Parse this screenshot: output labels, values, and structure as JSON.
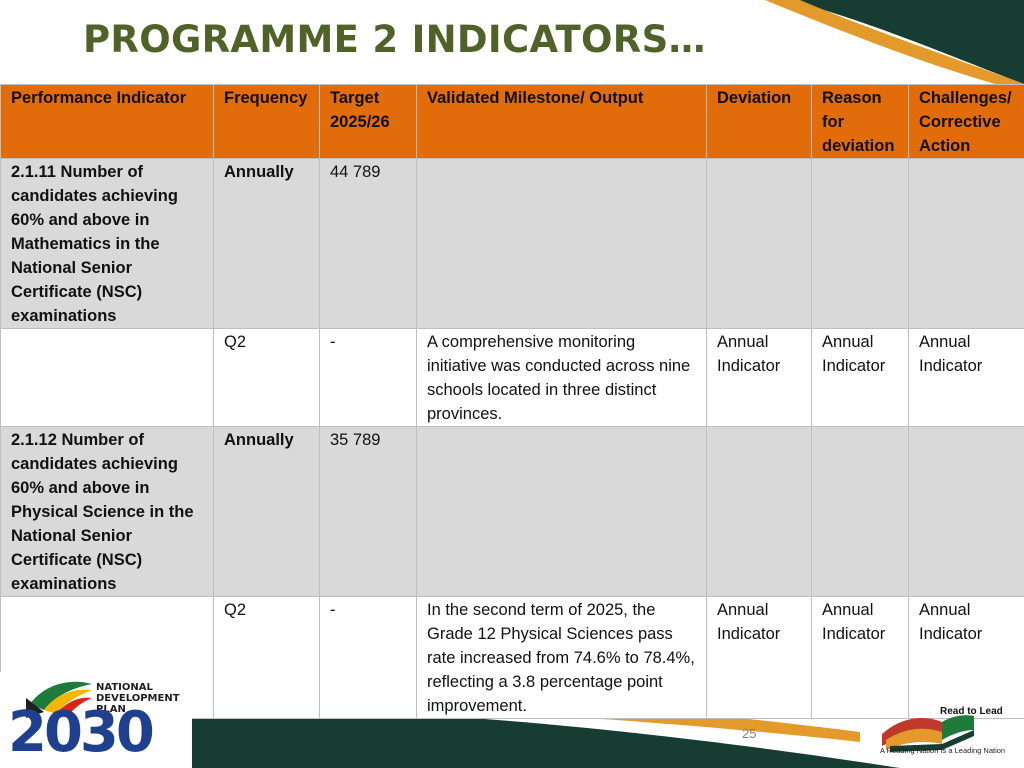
{
  "slide": {
    "title": "PROGRAMME 2 INDICATORS…",
    "page_number": "25"
  },
  "table": {
    "headers": [
      "Performance Indicator",
      "Frequency",
      "Target 2025/26",
      "Validated Milestone/ Output",
      "Deviation",
      "Reason for deviation",
      "Challenges/ Corrective Action"
    ],
    "rows": [
      {
        "indicator": "2.1.11 Number of candidates achieving 60% and above in Mathematics in the National Senior Certificate (NSC) examinations",
        "frequency": "Annually",
        "target": "44 789",
        "milestone": "",
        "deviation": "",
        "reason": "",
        "challenges": ""
      },
      {
        "indicator": "",
        "frequency": "Q2",
        "target": "-",
        "milestone": "A comprehensive monitoring initiative was conducted across nine schools located in three distinct provinces.",
        "deviation": "Annual Indicator",
        "reason": "Annual Indicator",
        "challenges": "Annual Indicator"
      },
      {
        "indicator": "2.1.12 Number of candidates achieving 60% and above in Physical Science in the National Senior Certificate (NSC) examinations",
        "frequency": "Annually",
        "target": "35 789",
        "milestone": "",
        "deviation": "",
        "reason": "",
        "challenges": ""
      },
      {
        "indicator": "",
        "frequency": "Q2",
        "target": "-",
        "milestone": "In the second term of 2025, the Grade 12 Physical Sciences pass rate increased from 74.6% to 78.4%, reflecting a 3.8 percentage point improvement.",
        "deviation": "Annual Indicator",
        "reason": "Annual Indicator",
        "challenges": "Annual Indicator"
      }
    ]
  },
  "logos": {
    "ndp_line1": "NATIONAL",
    "ndp_line2": "DEVELOPMENT",
    "ndp_line3": "PLAN",
    "ndp_year": "2030",
    "rtl_title": "Read to Lead",
    "rtl_tagline": "A Reading Nation Is a Leading Nation"
  },
  "colors": {
    "title": "#4f6228",
    "header_bg": "#e36c0a",
    "indicator_row_bg": "#d9d9d9",
    "dark_green": "#173d33",
    "gold": "#e39a2b"
  }
}
